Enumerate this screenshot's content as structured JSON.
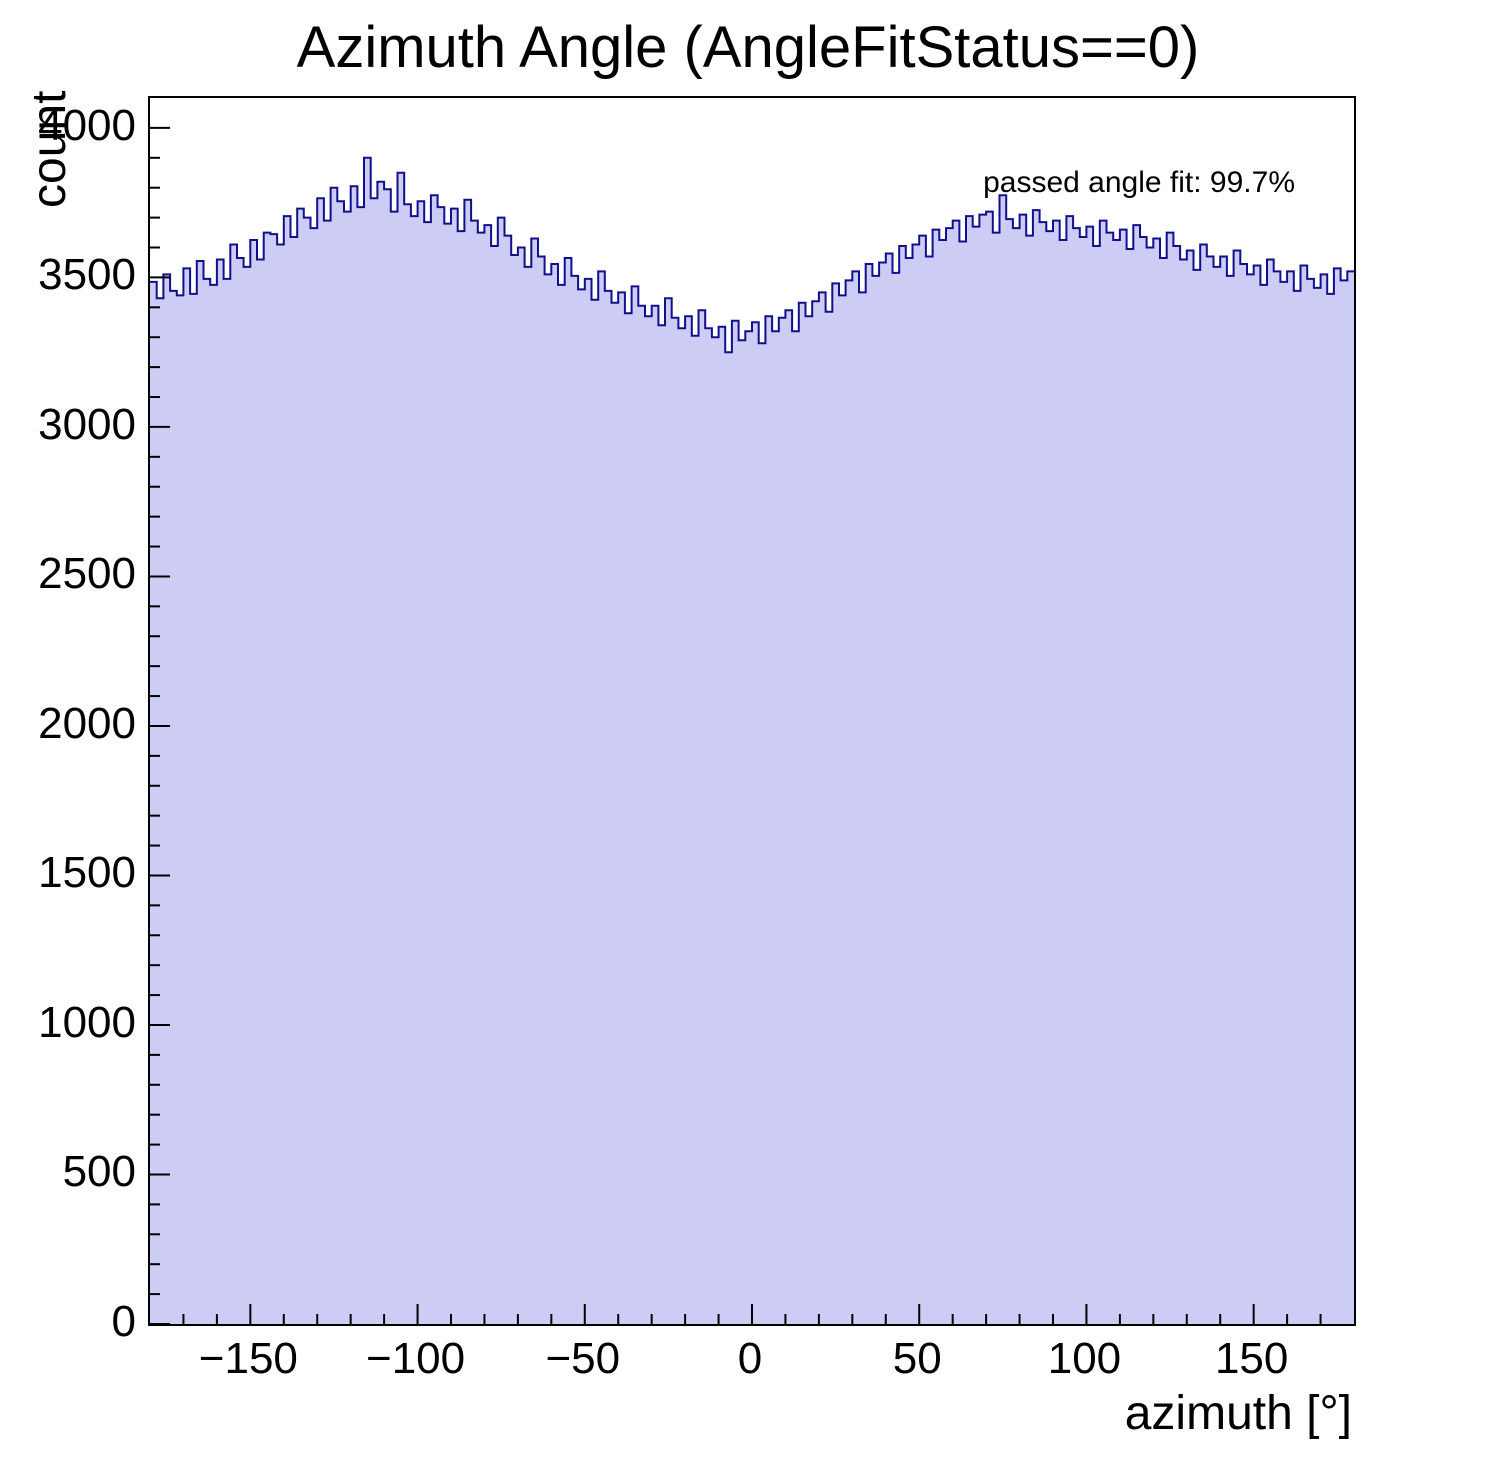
{
  "title": "Azimuth Angle (AngleFitStatus==0)",
  "annotation": "passed angle fit: 99.7%",
  "colors": {
    "fill": "#ccccf4",
    "line": "#10108e",
    "axis": "#000000"
  },
  "chart_data": {
    "type": "bar",
    "title": "Azimuth Angle (AngleFitStatus==0)",
    "xlabel": "azimuth [°]",
    "ylabel": "count",
    "annotation": "passed angle fit: 99.7%",
    "xlim": [
      -180,
      180
    ],
    "ylim": [
      0,
      4100
    ],
    "x_start": -180,
    "bin_width": 2,
    "x_minor_step": 10,
    "y_minor_step": 100,
    "x_ticks": [
      -150,
      -100,
      -50,
      0,
      50,
      100,
      150
    ],
    "x_tick_labels": [
      "−150",
      "−100",
      "−50",
      "0",
      "50",
      "100",
      "150"
    ],
    "y_ticks": [
      0,
      500,
      1000,
      1500,
      2000,
      2500,
      3000,
      3500,
      4000
    ],
    "y_tick_labels": [
      "0",
      "500",
      "1000",
      "1500",
      "2000",
      "2500",
      "3000",
      "3500",
      "4000"
    ],
    "grid": false,
    "legend": "none",
    "values": [
      3485,
      3430,
      3510,
      3455,
      3440,
      3530,
      3445,
      3555,
      3495,
      3475,
      3560,
      3495,
      3610,
      3565,
      3535,
      3625,
      3560,
      3650,
      3645,
      3610,
      3705,
      3635,
      3730,
      3700,
      3665,
      3765,
      3690,
      3800,
      3755,
      3720,
      3805,
      3735,
      3900,
      3765,
      3820,
      3795,
      3720,
      3850,
      3745,
      3705,
      3755,
      3685,
      3775,
      3735,
      3680,
      3730,
      3655,
      3760,
      3690,
      3650,
      3675,
      3605,
      3700,
      3640,
      3575,
      3600,
      3535,
      3630,
      3570,
      3510,
      3545,
      3475,
      3565,
      3505,
      3460,
      3495,
      3425,
      3520,
      3455,
      3415,
      3450,
      3380,
      3470,
      3405,
      3370,
      3405,
      3340,
      3430,
      3365,
      3330,
      3370,
      3305,
      3390,
      3330,
      3300,
      3335,
      3250,
      3355,
      3290,
      3320,
      3350,
      3280,
      3370,
      3320,
      3365,
      3390,
      3320,
      3415,
      3370,
      3420,
      3450,
      3385,
      3480,
      3440,
      3490,
      3520,
      3450,
      3545,
      3505,
      3550,
      3580,
      3515,
      3605,
      3565,
      3610,
      3640,
      3570,
      3660,
      3625,
      3665,
      3690,
      3620,
      3705,
      3670,
      3710,
      3720,
      3650,
      3775,
      3695,
      3665,
      3710,
      3640,
      3725,
      3685,
      3655,
      3690,
      3625,
      3705,
      3665,
      3635,
      3670,
      3605,
      3690,
      3650,
      3625,
      3660,
      3595,
      3675,
      3635,
      3600,
      3630,
      3565,
      3650,
      3605,
      3560,
      3590,
      3525,
      3610,
      3570,
      3535,
      3570,
      3505,
      3590,
      3545,
      3510,
      3540,
      3475,
      3560,
      3520,
      3485,
      3520,
      3455,
      3540,
      3495,
      3465,
      3510,
      3445,
      3530,
      3490,
      3520
    ]
  }
}
